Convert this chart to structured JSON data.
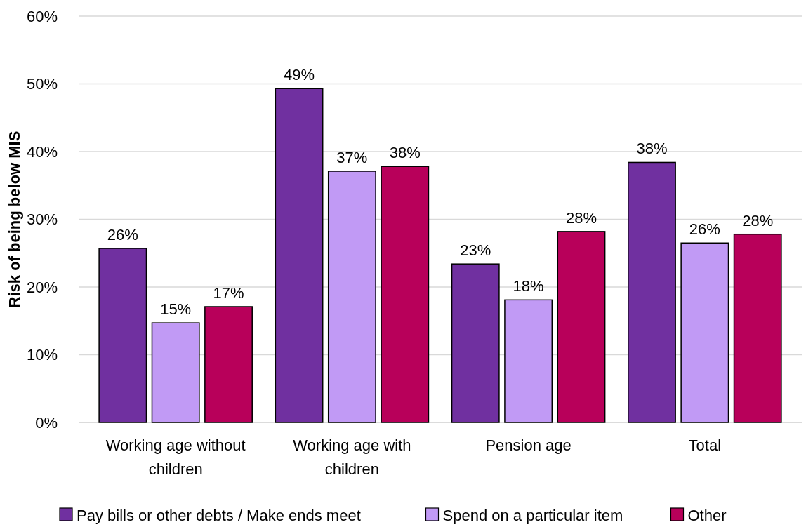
{
  "chart_data": {
    "type": "bar",
    "ylabel": "Risk of being below MIS",
    "categories": [
      "Working age without children",
      "Working age with children",
      "Pension age",
      "Total"
    ],
    "series": [
      {
        "name": "Pay bills or other debts / Make ends meet",
        "color": "#7030a0",
        "values": [
          25.7,
          49.3,
          23.4,
          38.4
        ],
        "value_labels": [
          "26%",
          "49%",
          "23%",
          "38%"
        ]
      },
      {
        "name": "Spend on a particular item",
        "color": "#c19af5",
        "values": [
          14.7,
          37.1,
          18.1,
          26.5
        ],
        "value_labels": [
          "15%",
          "37%",
          "18%",
          "26%"
        ]
      },
      {
        "name": "Other",
        "color": "#b8005a",
        "values": [
          17.1,
          37.8,
          28.2,
          27.8
        ],
        "value_labels": [
          "17%",
          "38%",
          "28%",
          "28%"
        ]
      }
    ],
    "ylim": [
      0,
      60
    ],
    "yticks": [
      {
        "value": 0,
        "label": "0%"
      },
      {
        "value": 10,
        "label": "10%"
      },
      {
        "value": 20,
        "label": "20%"
      },
      {
        "value": 30,
        "label": "30%"
      },
      {
        "value": 40,
        "label": "40%"
      },
      {
        "value": 50,
        "label": "50%"
      },
      {
        "value": 60,
        "label": "60%"
      }
    ],
    "grid": "y",
    "legend": "bottom"
  }
}
